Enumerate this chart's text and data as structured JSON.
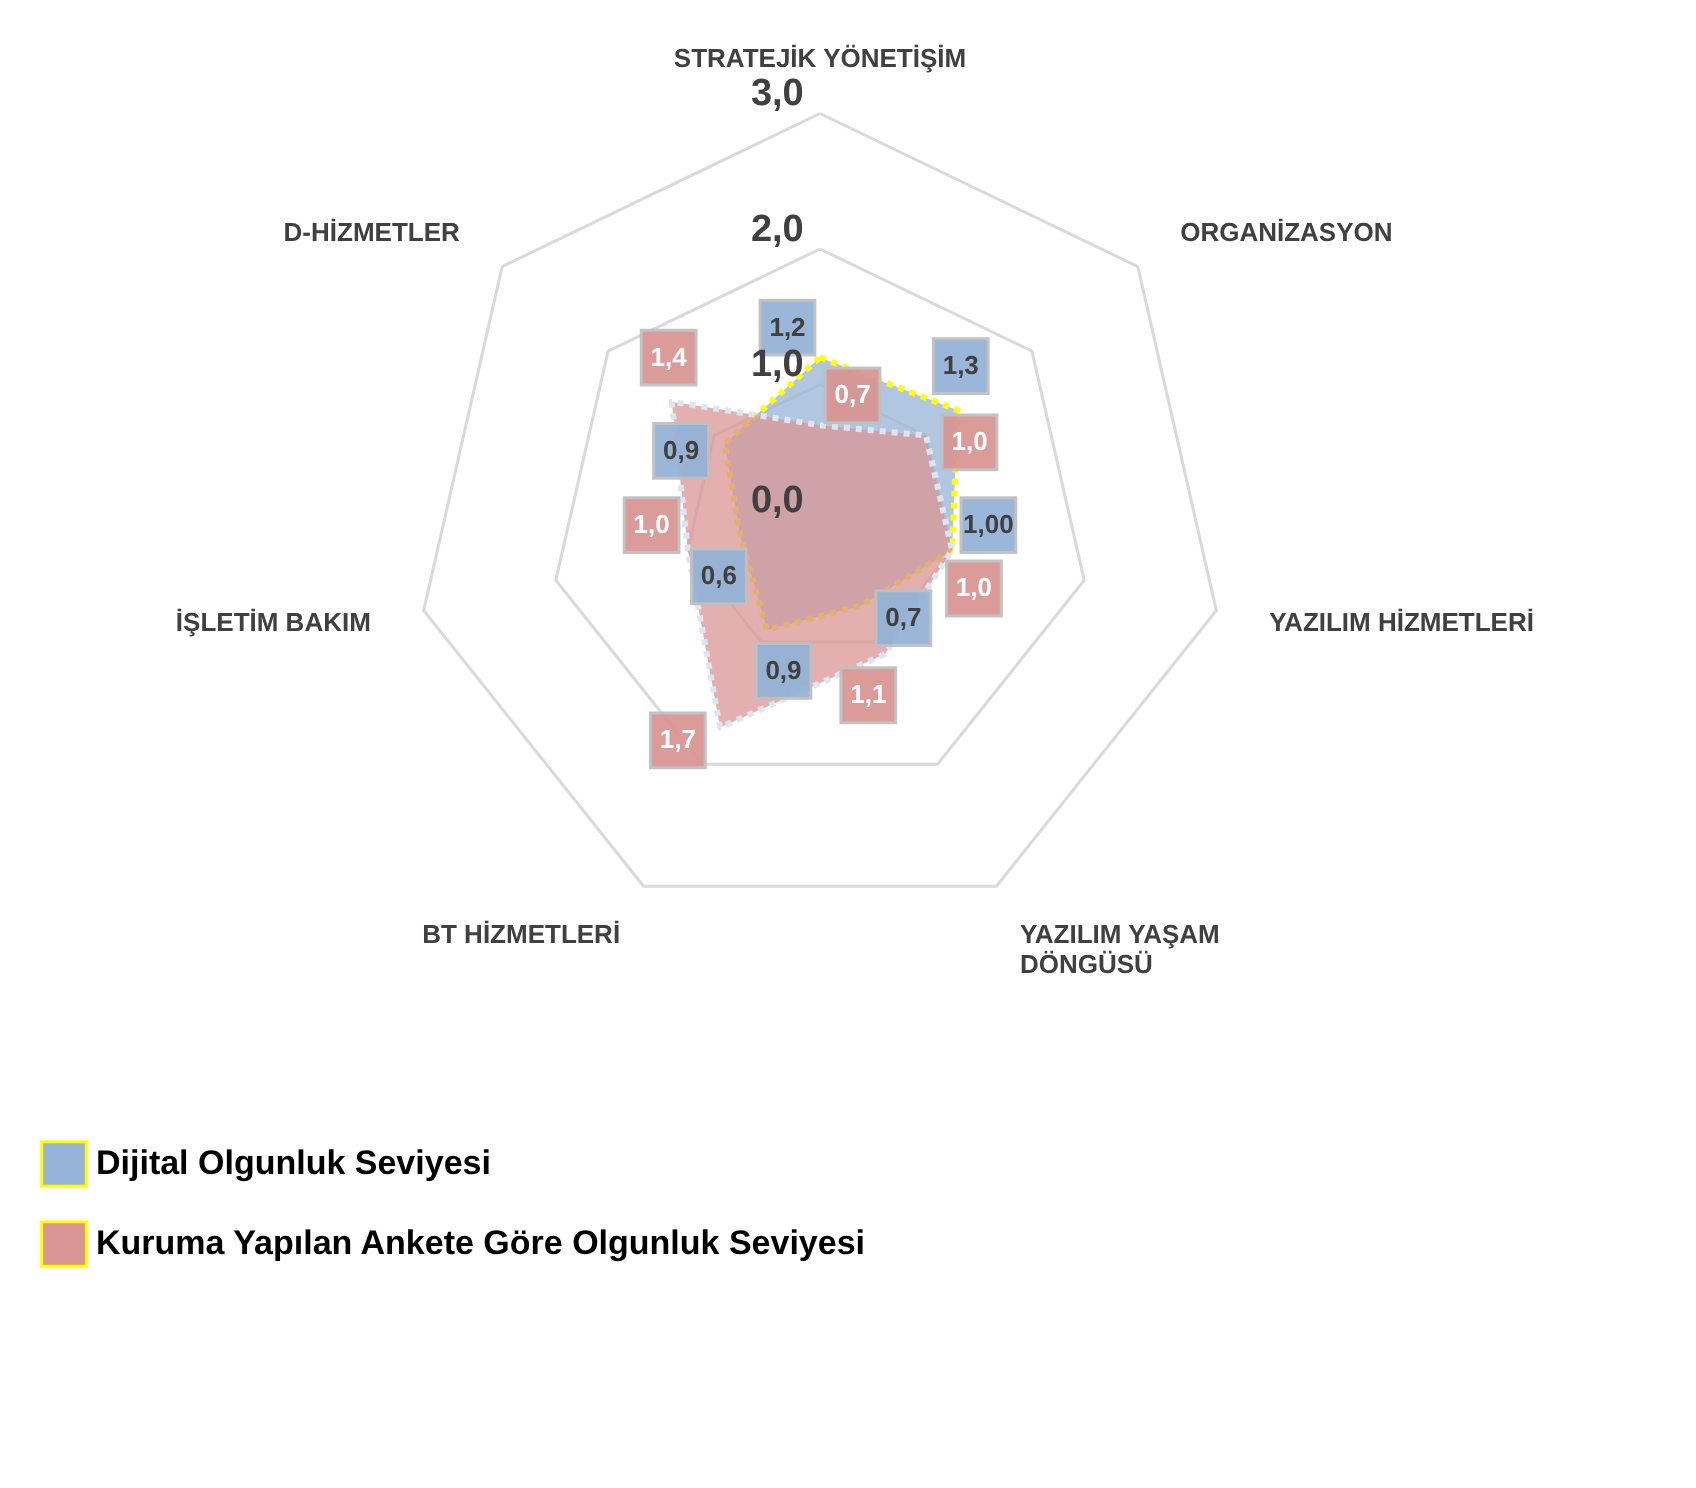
{
  "chart_data": {
    "type": "radar",
    "categories": [
      "STRATEJİK YÖNETİŞİM",
      "ORGANİZASYON",
      "YAZILIM HİZMETLERİ",
      "YAZILIM YAŞAM DÖNGÜSÜ",
      "BT HİZMETLERİ",
      "İŞLETİM BAKIM",
      "D-HİZMETLER"
    ],
    "series": [
      {
        "name": "Dijital Olgunluk Seviyesi",
        "color": "#95b3d7",
        "values": [
          1.2,
          1.3,
          1.0,
          0.7,
          0.9,
          0.6,
          0.9
        ],
        "value_labels": [
          "1,2",
          "1,3",
          "1,00",
          "0,7",
          "0,9",
          "0,6",
          "0,9"
        ]
      },
      {
        "name": "Kuruma Yapılan Ankete Göre Olgunluk Seviyesi",
        "color": "#d99694",
        "values": [
          0.7,
          1.0,
          1.0,
          1.1,
          1.7,
          1.0,
          1.4
        ],
        "value_labels": [
          "0,7",
          "1,0",
          "1,0",
          "1,1",
          "1,7",
          "1,0",
          "1,4"
        ]
      }
    ],
    "ylim": [
      0,
      3
    ],
    "yticks": [
      {
        "value": 0,
        "label": "0,0"
      },
      {
        "value": 1,
        "label": "1,0"
      },
      {
        "value": 2,
        "label": "2,0"
      },
      {
        "value": 3,
        "label": "3,0"
      }
    ],
    "grid": true,
    "legend": "bottom left",
    "line_style": "dotted"
  }
}
